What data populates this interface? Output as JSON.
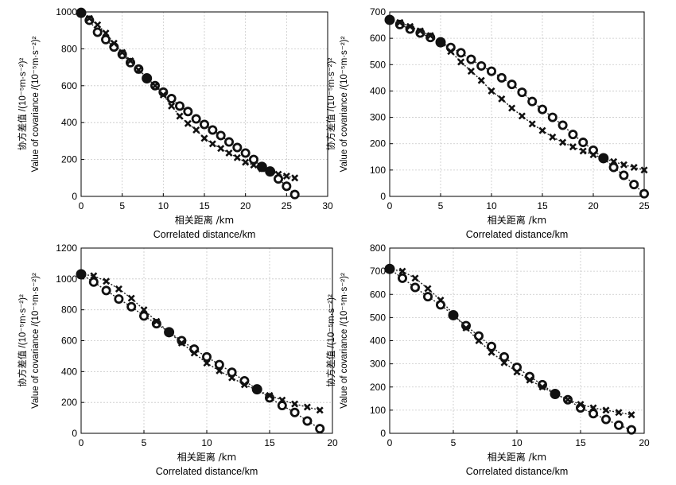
{
  "chart_data": [
    {
      "id": "tl",
      "type": "line",
      "title": "",
      "xlabel_cn": "相关距离 /km",
      "xlabel_en": "Correlated distance/km",
      "ylabel_cn": "协方差值 /(10⁻⁵m·s⁻²)²",
      "ylabel_en": "Value of covariance /(10⁻⁵m·s⁻²)²",
      "xlim": [
        0,
        30
      ],
      "ylim": [
        0,
        1000
      ],
      "xticks": [
        0,
        5,
        10,
        15,
        20,
        25,
        30
      ],
      "yticks": [
        0,
        200,
        400,
        600,
        800,
        1000
      ],
      "grid": true,
      "series": [
        {
          "name": "empirical",
          "marker": "circle",
          "x": [
            0,
            1,
            2,
            3,
            4,
            5,
            6,
            7,
            8,
            9,
            10,
            11,
            12,
            13,
            14,
            15,
            16,
            17,
            18,
            19,
            20,
            21,
            22,
            23,
            24,
            25,
            26
          ],
          "y": [
            995,
            955,
            890,
            850,
            810,
            770,
            725,
            690,
            640,
            600,
            565,
            530,
            490,
            460,
            420,
            390,
            360,
            330,
            295,
            265,
            235,
            200,
            160,
            135,
            95,
            55,
            10
          ]
        },
        {
          "name": "model",
          "marker": "cross",
          "x": [
            0,
            1,
            2,
            3,
            4,
            5,
            6,
            7,
            8,
            9,
            10,
            11,
            12,
            13,
            14,
            15,
            16,
            17,
            18,
            19,
            20,
            21,
            22,
            23,
            24,
            25,
            26
          ],
          "y": [
            995,
            965,
            930,
            885,
            830,
            780,
            735,
            685,
            645,
            600,
            550,
            490,
            435,
            395,
            360,
            315,
            285,
            260,
            235,
            210,
            185,
            170,
            150,
            135,
            120,
            110,
            100
          ]
        }
      ],
      "highlight": [
        {
          "x": 0,
          "y": 995
        },
        {
          "x": 8,
          "y": 640
        },
        {
          "x": 22,
          "y": 160
        },
        {
          "x": 23,
          "y": 135
        }
      ]
    },
    {
      "id": "tr",
      "type": "line",
      "title": "",
      "xlabel_cn": "相关距离 /km",
      "xlabel_en": "Correlated distance/km",
      "ylabel_cn": "协方差值 /(10⁻⁵m·s⁻²)²",
      "ylabel_en": "Value of covariance /(10⁻⁵m·s⁻²)²",
      "xlim": [
        0,
        25
      ],
      "ylim": [
        0,
        700
      ],
      "xticks": [
        0,
        5,
        10,
        15,
        20,
        25
      ],
      "yticks": [
        0,
        100,
        200,
        300,
        400,
        500,
        600,
        700
      ],
      "grid": true,
      "series": [
        {
          "name": "empirical",
          "marker": "circle",
          "x": [
            0,
            1,
            2,
            3,
            4,
            5,
            6,
            7,
            8,
            9,
            10,
            11,
            12,
            13,
            14,
            15,
            16,
            17,
            18,
            19,
            20,
            21,
            22,
            23,
            24,
            25
          ],
          "y": [
            670,
            652,
            635,
            620,
            603,
            585,
            565,
            545,
            520,
            495,
            475,
            450,
            425,
            395,
            360,
            330,
            300,
            270,
            235,
            205,
            175,
            145,
            110,
            80,
            45,
            10
          ]
        },
        {
          "name": "model",
          "marker": "cross",
          "x": [
            0,
            1,
            2,
            3,
            4,
            5,
            6,
            7,
            8,
            9,
            10,
            11,
            12,
            13,
            14,
            15,
            16,
            17,
            18,
            19,
            20,
            21,
            22,
            23,
            24,
            25
          ],
          "y": [
            670,
            660,
            645,
            628,
            610,
            585,
            550,
            510,
            475,
            440,
            400,
            370,
            335,
            305,
            275,
            250,
            225,
            205,
            188,
            172,
            158,
            145,
            132,
            120,
            110,
            100
          ]
        }
      ],
      "highlight": [
        {
          "x": 0,
          "y": 670
        },
        {
          "x": 5,
          "y": 585
        },
        {
          "x": 21,
          "y": 145
        }
      ]
    },
    {
      "id": "bl",
      "type": "line",
      "title": "",
      "xlabel_cn": "相关距离 /km",
      "xlabel_en": "Correlated distance/km",
      "ylabel_cn": "协方差值 /(10⁻⁵m·s⁻²)²",
      "ylabel_en": "Value of covariance /(10⁻⁵m·s⁻²)²",
      "xlim": [
        0,
        20
      ],
      "ylim": [
        0,
        1200
      ],
      "xticks": [
        0,
        5,
        10,
        15,
        20
      ],
      "yticks": [
        0,
        200,
        400,
        600,
        800,
        1000,
        1200
      ],
      "grid": true,
      "series": [
        {
          "name": "empirical",
          "marker": "circle",
          "x": [
            0,
            1,
            2,
            3,
            4,
            5,
            6,
            7,
            8,
            9,
            10,
            11,
            12,
            13,
            14,
            15,
            16,
            17,
            18,
            19
          ],
          "y": [
            1030,
            980,
            925,
            870,
            820,
            760,
            710,
            655,
            600,
            545,
            495,
            445,
            395,
            340,
            285,
            230,
            180,
            135,
            80,
            30
          ]
        },
        {
          "name": "model",
          "marker": "cross",
          "x": [
            0,
            1,
            2,
            3,
            4,
            5,
            6,
            7,
            8,
            9,
            10,
            11,
            12,
            13,
            14,
            15,
            16,
            17,
            18,
            19
          ],
          "y": [
            1030,
            1020,
            985,
            935,
            875,
            800,
            725,
            655,
            585,
            520,
            455,
            405,
            360,
            315,
            280,
            245,
            215,
            190,
            170,
            150
          ]
        }
      ],
      "highlight": [
        {
          "x": 0,
          "y": 1030
        },
        {
          "x": 7,
          "y": 655
        },
        {
          "x": 14,
          "y": 285
        }
      ]
    },
    {
      "id": "br",
      "type": "line",
      "title": "",
      "xlabel_cn": "相关距离 /km",
      "xlabel_en": "Correlated distance/km",
      "ylabel_cn": "协方差值 /(10⁻⁵m·s⁻²)²",
      "ylabel_en": "Value of covariance /(10⁻⁵m·s⁻²)²",
      "xlim": [
        0,
        20
      ],
      "ylim": [
        0,
        800
      ],
      "xticks": [
        0,
        5,
        10,
        15,
        20
      ],
      "yticks": [
        0,
        100,
        200,
        300,
        400,
        500,
        600,
        700,
        800
      ],
      "grid": true,
      "series": [
        {
          "name": "empirical",
          "marker": "circle",
          "x": [
            0,
            1,
            2,
            3,
            4,
            5,
            6,
            7,
            8,
            9,
            10,
            11,
            12,
            13,
            14,
            15,
            16,
            17,
            18,
            19
          ],
          "y": [
            710,
            670,
            630,
            590,
            555,
            510,
            465,
            420,
            375,
            330,
            285,
            245,
            210,
            170,
            145,
            110,
            85,
            60,
            35,
            15
          ]
        },
        {
          "name": "model",
          "marker": "cross",
          "x": [
            0,
            1,
            2,
            3,
            4,
            5,
            6,
            7,
            8,
            9,
            10,
            11,
            12,
            13,
            14,
            15,
            16,
            17,
            18,
            19
          ],
          "y": [
            710,
            700,
            670,
            625,
            575,
            515,
            455,
            400,
            350,
            305,
            265,
            230,
            200,
            170,
            145,
            125,
            110,
            100,
            90,
            80
          ]
        }
      ],
      "highlight": [
        {
          "x": 0,
          "y": 710
        },
        {
          "x": 5,
          "y": 510
        },
        {
          "x": 13,
          "y": 170
        }
      ]
    }
  ]
}
